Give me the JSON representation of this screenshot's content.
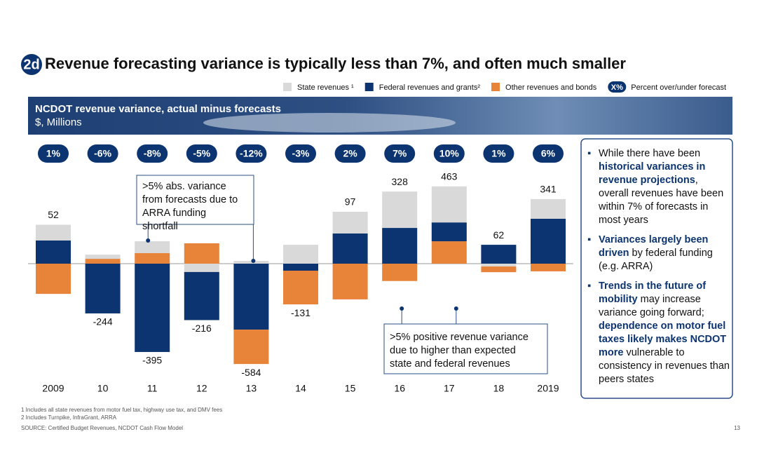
{
  "header": {
    "badge": "2d",
    "title": "Revenue forecasting variance is typically less than 7%, and often much smaller"
  },
  "chart_data": {
    "type": "bar",
    "stacked": true,
    "title": "NCDOT revenue variance, actual minus forecasts",
    "subtitle": "$, Millions",
    "categories": [
      "2009",
      "10",
      "11",
      "12",
      "13",
      "14",
      "15",
      "16",
      "17",
      "18",
      "2019"
    ],
    "series": [
      {
        "name": "State revenues ¹",
        "color": "#d9d9d9",
        "values": [
          94,
          25,
          71,
          -50,
          17,
          113,
          130,
          218,
          216,
          -17,
          118
        ]
      },
      {
        "name": "Federal revenues and grants²",
        "color": "#0b3470",
        "values": [
          139,
          -298,
          -529,
          -288,
          -395,
          -42,
          181,
          214,
          113,
          113,
          269
        ]
      },
      {
        "name": "Other revenues and bonds",
        "color": "#e8833a",
        "values": [
          -181,
          29,
          63,
          122,
          -206,
          -202,
          -214,
          -104,
          134,
          -34,
          -46
        ]
      }
    ],
    "totals": [
      52,
      -244,
      -395,
      -216,
      -584,
      -131,
      97,
      328,
      463,
      62,
      341
    ],
    "percent_labels": [
      "1%",
      "-6%",
      "-8%",
      "-5%",
      "-12%",
      "-3%",
      "2%",
      "7%",
      "10%",
      "1%",
      "6%"
    ],
    "percent_legend": {
      "symbol": "X%",
      "label": "Percent over/under forecast"
    },
    "annotations": [
      {
        "text": ">5% abs. variance from forecasts due to ARRA funding shortfall"
      },
      {
        "text": ">5% positive revenue variance due to higher than expected state and federal revenues"
      }
    ]
  },
  "sidebar": {
    "bullets": [
      [
        {
          "text": "While there have been ",
          "bold": false
        },
        {
          "text": "historical variances in revenue projections",
          "bold": true
        },
        {
          "text": ", overall revenues have been within 7% of forecasts in most years",
          "bold": false
        }
      ],
      [
        {
          "text": "Variances largely been driven",
          "bold": true
        },
        {
          "text": " by federal funding (e.g. ARRA)",
          "bold": false
        }
      ],
      [
        {
          "text": "Trends in the future of mobility",
          "bold": true
        },
        {
          "text": " may increase variance going forward; ",
          "bold": false
        },
        {
          "text": "dependence on motor fuel taxes likely makes NCDOT more",
          "bold": true
        },
        {
          "text": " vulnerable to consistency in revenues than peers states",
          "bold": false
        }
      ]
    ]
  },
  "footer": {
    "footnotes": [
      "1 Includes all state revenues from motor fuel tax, highway use tax, and DMV fees",
      "2 Includes Turnpike, InfraGrant, ARRA"
    ],
    "source": "SOURCE: Certified Budget Revenues, NCDOT Cash Flow Model",
    "page_number": "13"
  }
}
